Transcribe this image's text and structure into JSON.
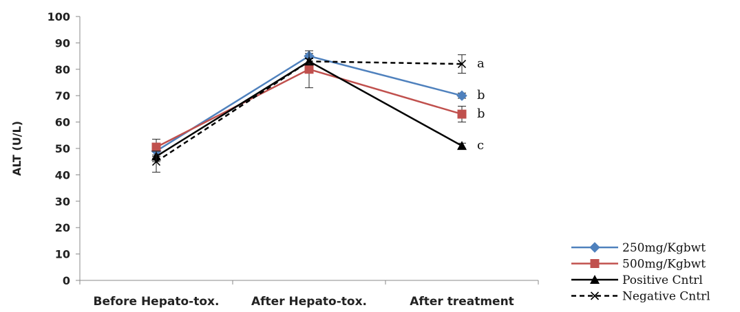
{
  "chart_data": {
    "type": "line",
    "title": "",
    "xlabel": "",
    "ylabel": "ALT (U/L)",
    "ylim": [
      0,
      100
    ],
    "yticks": [
      0,
      10,
      20,
      30,
      40,
      50,
      60,
      70,
      80,
      90,
      100
    ],
    "categories": [
      "Before Hepato-tox.",
      "After Hepato-tox.",
      "After treatment"
    ],
    "grid": false,
    "legend_position": "bottom-right",
    "series": [
      {
        "name": "250mg/Kgbwt",
        "color": "#4f81bd",
        "marker": "diamond",
        "dash": "solid",
        "values": [
          49,
          85,
          70
        ],
        "errors": [
          2,
          1,
          1
        ]
      },
      {
        "name": "500mg/Kgbwt",
        "color": "#c0504d",
        "marker": "square",
        "dash": "solid",
        "values": [
          50.5,
          80,
          63
        ],
        "errors": [
          3,
          7,
          3
        ]
      },
      {
        "name": "Positive Cntrl",
        "color": "#000000",
        "marker": "triangle",
        "dash": "solid",
        "values": [
          47,
          83,
          51
        ],
        "errors": [
          2,
          1,
          1
        ]
      },
      {
        "name": "Negative Cntrl",
        "color": "#000000",
        "marker": "x",
        "dash": "dashed",
        "values": [
          45,
          83,
          82
        ],
        "errors": [
          4,
          1,
          3.5
        ]
      }
    ],
    "annotations": [
      {
        "text": "a",
        "category": "After treatment",
        "y": 82
      },
      {
        "text": "b",
        "category": "After treatment",
        "y": 70
      },
      {
        "text": "b",
        "category": "After treatment",
        "y": 63
      },
      {
        "text": "c",
        "category": "After treatment",
        "y": 51
      }
    ]
  }
}
